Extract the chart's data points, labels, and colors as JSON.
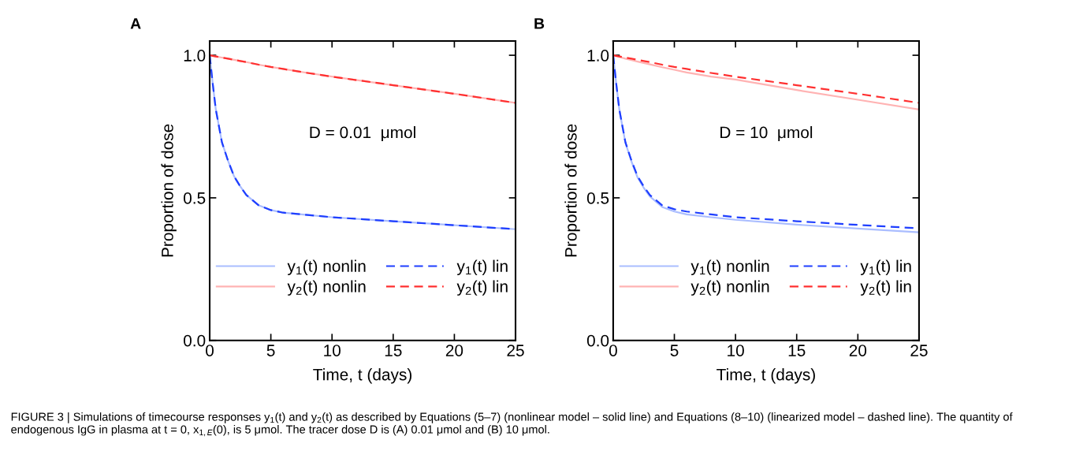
{
  "chart_data": [
    {
      "type": "line",
      "title": "A",
      "xlabel": "Time, t (days)",
      "ylabel": "Proportion of dose",
      "xlim": [
        0,
        25
      ],
      "ylim": [
        0,
        1.05
      ],
      "xticks": [
        0,
        5,
        10,
        15,
        20,
        25
      ],
      "yticks": [
        {
          "value": 0,
          "label": "0.0"
        },
        {
          "value": 0.5,
          "label": "0.5"
        },
        {
          "value": 1,
          "label": "1.0"
        }
      ],
      "grid": false,
      "legend": "bottom",
      "x": [
        0,
        0.25,
        0.5,
        1,
        1.5,
        2,
        2.5,
        3,
        4,
        5,
        6,
        8,
        10,
        15,
        20,
        25
      ],
      "series": [
        {
          "name": "y$_{1}$(t) nonlin",
          "color": "#aabdff",
          "line_style": "solid",
          "values": [
            1.0,
            0.9,
            0.81,
            0.695,
            0.63,
            0.575,
            0.54,
            0.51,
            0.474,
            0.457,
            0.448,
            0.44,
            0.432,
            0.418,
            0.404,
            0.39
          ]
        },
        {
          "name": "y$_{2}$(t) nonlin",
          "color": "#ffb3b3",
          "line_style": "solid",
          "values": [
            1.0,
            0.998,
            0.996,
            0.992,
            0.988,
            0.984,
            0.98,
            0.976,
            0.967,
            0.959,
            0.952,
            0.938,
            0.925,
            0.895,
            0.865,
            0.833
          ]
        },
        {
          "name": "y$_{1}$(t) lin",
          "color": "#1f3fff",
          "line_style": "dashed",
          "values": [
            1.0,
            0.9,
            0.81,
            0.695,
            0.63,
            0.575,
            0.54,
            0.51,
            0.474,
            0.457,
            0.448,
            0.44,
            0.432,
            0.418,
            0.404,
            0.39
          ]
        },
        {
          "name": "y$_{2}$(t) lin",
          "color": "#ff3030",
          "line_style": "dashed",
          "values": [
            1.0,
            0.998,
            0.996,
            0.992,
            0.988,
            0.984,
            0.98,
            0.976,
            0.967,
            0.959,
            0.952,
            0.938,
            0.925,
            0.895,
            0.865,
            0.833
          ]
        }
      ],
      "annotations": [
        "D = 0.01  μmol",
        "FIGURE 3 | Simulations of timecourse responses y$_{1}$(t) and y$_{2}$(t) as described by Equations (5–7) (nonlinear model – solid line) and Equations (8–10) (linearized model – dashed line). The quantity of endogenous IgG in plasma at t = 0, x$_{1,E}$(0), is 5 μmol. The tracer dose D is (A) 0.01 μmol and (B) 10 μmol."
      ]
    },
    {
      "type": "line",
      "title": "B",
      "xlabel": "Time, t (days)",
      "ylabel": "Proportion of dose",
      "xlim": [
        0,
        25
      ],
      "ylim": [
        0,
        1.05
      ],
      "xticks": [
        0,
        5,
        10,
        15,
        20,
        25
      ],
      "yticks": [
        {
          "value": 0,
          "label": "0.0"
        },
        {
          "value": 0.5,
          "label": "0.5"
        },
        {
          "value": 1,
          "label": "1.0"
        }
      ],
      "grid": false,
      "legend": "bottom",
      "x": [
        0,
        0.25,
        0.5,
        1,
        1.5,
        2,
        2.5,
        3,
        4,
        5,
        6,
        8,
        10,
        15,
        20,
        25
      ],
      "series": [
        {
          "name": "y$_{1}$(t) nonlin",
          "color": "#aabdff",
          "line_style": "solid",
          "values": [
            1.0,
            0.9,
            0.81,
            0.693,
            0.627,
            0.571,
            0.535,
            0.505,
            0.468,
            0.452,
            0.442,
            0.432,
            0.423,
            0.406,
            0.392,
            0.379
          ]
        },
        {
          "name": "y$_{2}$(t) nonlin",
          "color": "#ffb3b3",
          "line_style": "solid",
          "values": [
            1.0,
            0.997,
            0.994,
            0.988,
            0.983,
            0.978,
            0.973,
            0.968,
            0.958,
            0.949,
            0.94,
            0.925,
            0.915,
            0.878,
            0.844,
            0.81
          ]
        },
        {
          "name": "y$_{1}$(t) lin",
          "color": "#1f3fff",
          "line_style": "dashed",
          "values": [
            1.0,
            0.9,
            0.81,
            0.695,
            0.63,
            0.575,
            0.54,
            0.51,
            0.474,
            0.46,
            0.452,
            0.442,
            0.432,
            0.418,
            0.405,
            0.393
          ]
        },
        {
          "name": "y$_{2}$(t) lin",
          "color": "#ff3030",
          "line_style": "dashed",
          "values": [
            1.0,
            0.998,
            0.996,
            0.992,
            0.988,
            0.984,
            0.98,
            0.976,
            0.967,
            0.959,
            0.952,
            0.938,
            0.925,
            0.895,
            0.865,
            0.833
          ]
        }
      ],
      "annotations": [
        "D = 10  μmol"
      ]
    }
  ]
}
